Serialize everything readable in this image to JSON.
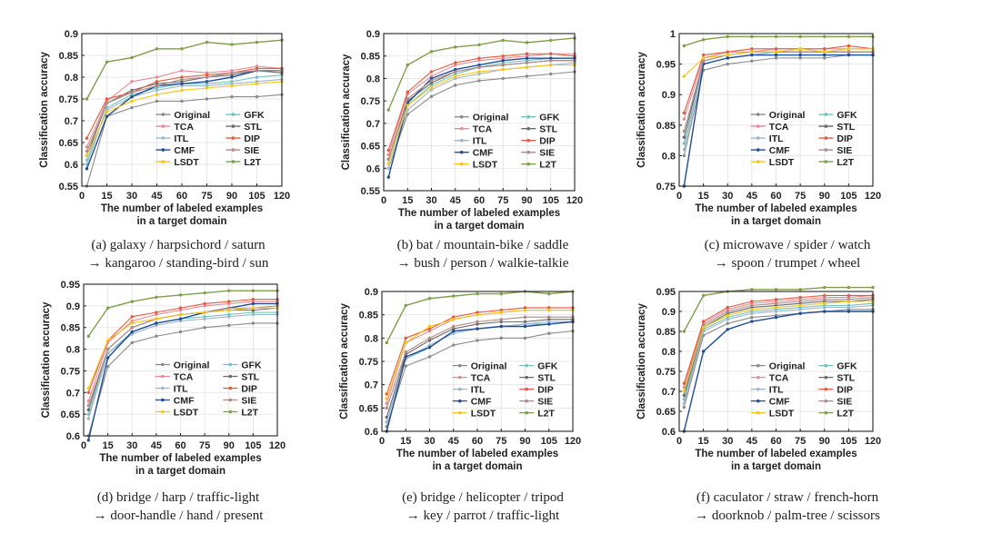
{
  "shared": {
    "xlabel_line1": "The number of labeled examples",
    "xlabel_line2": "in a target domain",
    "ylabel": "Classification accuracy",
    "x": [
      3,
      15,
      30,
      45,
      60,
      75,
      90,
      105,
      120
    ],
    "xticks": [
      "0",
      "15",
      "30",
      "45",
      "60",
      "75",
      "90",
      "105",
      "120"
    ],
    "legend": [
      "Original",
      "GFK",
      "TCA",
      "STL",
      "ITL",
      "DIP",
      "CMF",
      "SIE",
      "LSDT",
      "L2T"
    ],
    "method_colors": {
      "Original": "#8a8a8a",
      "GFK": "#6fc3bf",
      "TCA": "#e88a96",
      "STL": "#6a6a6a",
      "ITL": "#9fb6c8",
      "DIP": "#e35b3f",
      "CMF": "#1f4e96",
      "SIE": "#b08a86",
      "LSDT": "#f5c518",
      "L2T": "#7ea04a"
    }
  },
  "chart_data": [
    {
      "type": "line",
      "caption_line1": "(a) galaxy / harpsichord / saturn",
      "caption_line2": "→ kangaroo / standing-bird / sun",
      "ylim": [
        0.55,
        0.9
      ],
      "yticks": [
        "0.55",
        "0.6",
        "0.65",
        "0.7",
        "0.75",
        "0.8",
        "0.85",
        "0.9"
      ],
      "series": [
        {
          "name": "Original",
          "values": [
            0.55,
            0.71,
            0.73,
            0.745,
            0.745,
            0.75,
            0.755,
            0.755,
            0.76
          ]
        },
        {
          "name": "GFK",
          "values": [
            0.6,
            0.73,
            0.76,
            0.775,
            0.785,
            0.785,
            0.79,
            0.8,
            0.805
          ]
        },
        {
          "name": "TCA",
          "values": [
            0.64,
            0.745,
            0.79,
            0.8,
            0.815,
            0.81,
            0.815,
            0.825,
            0.82
          ]
        },
        {
          "name": "STL",
          "values": [
            0.62,
            0.74,
            0.77,
            0.785,
            0.79,
            0.8,
            0.805,
            0.815,
            0.81
          ]
        },
        {
          "name": "ITL",
          "values": [
            0.61,
            0.725,
            0.755,
            0.77,
            0.78,
            0.78,
            0.785,
            0.79,
            0.795
          ]
        },
        {
          "name": "DIP",
          "values": [
            0.66,
            0.75,
            0.765,
            0.79,
            0.8,
            0.805,
            0.81,
            0.82,
            0.82
          ]
        },
        {
          "name": "CMF",
          "values": [
            0.59,
            0.71,
            0.755,
            0.78,
            0.785,
            0.79,
            0.8,
            0.815,
            0.815
          ]
        },
        {
          "name": "SIE",
          "values": [
            0.63,
            0.74,
            0.765,
            0.78,
            0.795,
            0.8,
            0.81,
            0.815,
            0.815
          ]
        },
        {
          "name": "LSDT",
          "values": [
            0.62,
            0.72,
            0.745,
            0.76,
            0.77,
            0.775,
            0.78,
            0.785,
            0.79
          ]
        },
        {
          "name": "L2T",
          "values": [
            0.75,
            0.835,
            0.845,
            0.865,
            0.865,
            0.88,
            0.875,
            0.88,
            0.885
          ]
        }
      ]
    },
    {
      "type": "line",
      "caption_line1": "(b) bat / mountain-bike / saddle",
      "caption_line2": "→ bush / person / walkie-talkie",
      "ylim": [
        0.55,
        0.9
      ],
      "yticks": [
        "0.55",
        "0.6",
        "0.65",
        "0.7",
        "0.75",
        "0.8",
        "0.85",
        "0.9"
      ],
      "series": [
        {
          "name": "Original",
          "values": [
            0.6,
            0.72,
            0.76,
            0.785,
            0.795,
            0.8,
            0.805,
            0.81,
            0.815
          ]
        },
        {
          "name": "GFK",
          "values": [
            0.61,
            0.74,
            0.785,
            0.81,
            0.825,
            0.835,
            0.84,
            0.845,
            0.845
          ]
        },
        {
          "name": "TCA",
          "values": [
            0.63,
            0.765,
            0.805,
            0.83,
            0.84,
            0.845,
            0.85,
            0.855,
            0.855
          ]
        },
        {
          "name": "STL",
          "values": [
            0.62,
            0.75,
            0.79,
            0.815,
            0.825,
            0.83,
            0.835,
            0.84,
            0.84
          ]
        },
        {
          "name": "ITL",
          "values": [
            0.6,
            0.73,
            0.775,
            0.8,
            0.81,
            0.82,
            0.825,
            0.83,
            0.835
          ]
        },
        {
          "name": "DIP",
          "values": [
            0.64,
            0.77,
            0.815,
            0.835,
            0.845,
            0.85,
            0.855,
            0.855,
            0.85
          ]
        },
        {
          "name": "CMF",
          "values": [
            0.58,
            0.745,
            0.8,
            0.82,
            0.83,
            0.84,
            0.845,
            0.845,
            0.845
          ]
        },
        {
          "name": "SIE",
          "values": [
            0.62,
            0.755,
            0.795,
            0.815,
            0.825,
            0.83,
            0.835,
            0.84,
            0.84
          ]
        },
        {
          "name": "LSDT",
          "values": [
            0.61,
            0.74,
            0.78,
            0.805,
            0.815,
            0.82,
            0.825,
            0.83,
            0.83
          ]
        },
        {
          "name": "L2T",
          "values": [
            0.73,
            0.83,
            0.86,
            0.87,
            0.875,
            0.885,
            0.88,
            0.885,
            0.89
          ]
        }
      ]
    },
    {
      "type": "line",
      "caption_line1": "(c) microwave / spider / watch",
      "caption_line2": "→ spoon / trumpet / wheel",
      "ylim": [
        0.75,
        1.0
      ],
      "yticks": [
        "0.75",
        "0.8",
        "0.85",
        "0.9",
        "0.95",
        "1"
      ],
      "series": [
        {
          "name": "Original",
          "values": [
            0.8,
            0.94,
            0.95,
            0.955,
            0.96,
            0.96,
            0.96,
            0.965,
            0.965
          ]
        },
        {
          "name": "GFK",
          "values": [
            0.82,
            0.95,
            0.96,
            0.965,
            0.97,
            0.97,
            0.97,
            0.97,
            0.97
          ]
        },
        {
          "name": "TCA",
          "values": [
            0.86,
            0.96,
            0.97,
            0.97,
            0.975,
            0.975,
            0.975,
            0.975,
            0.975
          ]
        },
        {
          "name": "STL",
          "values": [
            0.83,
            0.955,
            0.965,
            0.97,
            0.97,
            0.97,
            0.97,
            0.97,
            0.97
          ]
        },
        {
          "name": "ITL",
          "values": [
            0.81,
            0.95,
            0.96,
            0.965,
            0.965,
            0.965,
            0.965,
            0.965,
            0.965
          ]
        },
        {
          "name": "DIP",
          "values": [
            0.87,
            0.965,
            0.97,
            0.975,
            0.975,
            0.975,
            0.975,
            0.98,
            0.975
          ]
        },
        {
          "name": "CMF",
          "values": [
            0.75,
            0.95,
            0.96,
            0.965,
            0.965,
            0.965,
            0.965,
            0.965,
            0.965
          ]
        },
        {
          "name": "SIE",
          "values": [
            0.84,
            0.955,
            0.965,
            0.97,
            0.97,
            0.97,
            0.97,
            0.97,
            0.97
          ]
        },
        {
          "name": "LSDT",
          "values": [
            0.93,
            0.96,
            0.965,
            0.97,
            0.97,
            0.975,
            0.97,
            0.975,
            0.975
          ]
        },
        {
          "name": "L2T",
          "values": [
            0.98,
            0.99,
            0.995,
            0.995,
            0.995,
            0.995,
            0.995,
            0.995,
            0.995
          ]
        }
      ]
    },
    {
      "type": "line",
      "caption_line1": "(d) bridge / harp / traffic-light",
      "caption_line2": "→ door-handle / hand / present",
      "ylim": [
        0.6,
        0.95
      ],
      "yticks": [
        "0.6",
        "0.65",
        "0.7",
        "0.75",
        "0.8",
        "0.85",
        "0.9",
        "0.95"
      ],
      "series": [
        {
          "name": "Original",
          "values": [
            0.6,
            0.76,
            0.815,
            0.83,
            0.84,
            0.85,
            0.855,
            0.86,
            0.86
          ]
        },
        {
          "name": "GFK",
          "values": [
            0.65,
            0.79,
            0.84,
            0.86,
            0.87,
            0.875,
            0.88,
            0.885,
            0.885
          ]
        },
        {
          "name": "TCA",
          "values": [
            0.68,
            0.815,
            0.865,
            0.88,
            0.89,
            0.9,
            0.905,
            0.91,
            0.91
          ]
        },
        {
          "name": "STL",
          "values": [
            0.66,
            0.8,
            0.85,
            0.87,
            0.88,
            0.885,
            0.89,
            0.89,
            0.895
          ]
        },
        {
          "name": "ITL",
          "values": [
            0.64,
            0.79,
            0.835,
            0.855,
            0.865,
            0.87,
            0.875,
            0.88,
            0.88
          ]
        },
        {
          "name": "DIP",
          "values": [
            0.7,
            0.82,
            0.875,
            0.885,
            0.895,
            0.905,
            0.91,
            0.915,
            0.915
          ]
        },
        {
          "name": "CMF",
          "values": [
            0.59,
            0.78,
            0.84,
            0.86,
            0.87,
            0.885,
            0.895,
            0.905,
            0.905
          ]
        },
        {
          "name": "SIE",
          "values": [
            0.67,
            0.8,
            0.85,
            0.87,
            0.88,
            0.885,
            0.895,
            0.895,
            0.9
          ]
        },
        {
          "name": "LSDT",
          "values": [
            0.71,
            0.82,
            0.86,
            0.87,
            0.88,
            0.885,
            0.89,
            0.895,
            0.895
          ]
        },
        {
          "name": "L2T",
          "values": [
            0.83,
            0.895,
            0.91,
            0.92,
            0.925,
            0.93,
            0.935,
            0.935,
            0.935
          ]
        }
      ]
    },
    {
      "type": "line",
      "caption_line1": "(e) bridge / helicopter / tripod",
      "caption_line2": "→ key / parrot / traffic-light",
      "ylim": [
        0.6,
        0.9
      ],
      "yticks": [
        "0.6",
        "0.65",
        "0.7",
        "0.75",
        "0.8",
        "0.85",
        "0.9"
      ],
      "series": [
        {
          "name": "Original",
          "values": [
            0.61,
            0.74,
            0.76,
            0.785,
            0.795,
            0.8,
            0.8,
            0.81,
            0.815
          ]
        },
        {
          "name": "GFK",
          "values": [
            0.62,
            0.755,
            0.78,
            0.815,
            0.82,
            0.825,
            0.83,
            0.83,
            0.835
          ]
        },
        {
          "name": "TCA",
          "values": [
            0.66,
            0.79,
            0.815,
            0.84,
            0.85,
            0.855,
            0.86,
            0.86,
            0.86
          ]
        },
        {
          "name": "STL",
          "values": [
            0.63,
            0.765,
            0.795,
            0.82,
            0.83,
            0.835,
            0.835,
            0.84,
            0.84
          ]
        },
        {
          "name": "ITL",
          "values": [
            0.62,
            0.755,
            0.785,
            0.81,
            0.82,
            0.825,
            0.83,
            0.835,
            0.835
          ]
        },
        {
          "name": "DIP",
          "values": [
            0.68,
            0.8,
            0.82,
            0.845,
            0.855,
            0.86,
            0.865,
            0.865,
            0.865
          ]
        },
        {
          "name": "CMF",
          "values": [
            0.6,
            0.76,
            0.78,
            0.815,
            0.82,
            0.825,
            0.825,
            0.83,
            0.835
          ]
        },
        {
          "name": "SIE",
          "values": [
            0.65,
            0.77,
            0.8,
            0.825,
            0.835,
            0.84,
            0.845,
            0.845,
            0.845
          ]
        },
        {
          "name": "LSDT",
          "values": [
            0.67,
            0.79,
            0.825,
            0.84,
            0.85,
            0.855,
            0.86,
            0.86,
            0.86
          ]
        },
        {
          "name": "L2T",
          "values": [
            0.79,
            0.87,
            0.885,
            0.89,
            0.895,
            0.895,
            0.9,
            0.895,
            0.9
          ]
        }
      ]
    },
    {
      "type": "line",
      "caption_line1": "(f) caculator / straw / french-horn",
      "caption_line2": "→ doorknob / palm-tree / scissors",
      "ylim": [
        0.6,
        0.95
      ],
      "yticks": [
        "0.6",
        "0.65",
        "0.7",
        "0.75",
        "0.8",
        "0.85",
        "0.9",
        "0.95"
      ],
      "series": [
        {
          "name": "Original",
          "values": [
            0.66,
            0.84,
            0.87,
            0.885,
            0.89,
            0.895,
            0.9,
            0.905,
            0.905
          ]
        },
        {
          "name": "GFK",
          "values": [
            0.68,
            0.855,
            0.885,
            0.9,
            0.905,
            0.91,
            0.915,
            0.915,
            0.92
          ]
        },
        {
          "name": "TCA",
          "values": [
            0.71,
            0.87,
            0.905,
            0.92,
            0.925,
            0.93,
            0.935,
            0.935,
            0.94
          ]
        },
        {
          "name": "STL",
          "values": [
            0.69,
            0.86,
            0.895,
            0.91,
            0.915,
            0.92,
            0.925,
            0.925,
            0.93
          ]
        },
        {
          "name": "ITL",
          "values": [
            0.67,
            0.85,
            0.88,
            0.895,
            0.9,
            0.905,
            0.91,
            0.91,
            0.915
          ]
        },
        {
          "name": "DIP",
          "values": [
            0.72,
            0.875,
            0.91,
            0.925,
            0.93,
            0.935,
            0.94,
            0.94,
            0.94
          ]
        },
        {
          "name": "CMF",
          "values": [
            0.6,
            0.8,
            0.855,
            0.875,
            0.885,
            0.895,
            0.9,
            0.9,
            0.9
          ]
        },
        {
          "name": "SIE",
          "values": [
            0.7,
            0.865,
            0.9,
            0.915,
            0.92,
            0.925,
            0.93,
            0.93,
            0.935
          ]
        },
        {
          "name": "LSDT",
          "values": [
            0.7,
            0.86,
            0.89,
            0.905,
            0.91,
            0.915,
            0.92,
            0.925,
            0.925
          ]
        },
        {
          "name": "L2T",
          "values": [
            0.85,
            0.94,
            0.95,
            0.955,
            0.955,
            0.955,
            0.96,
            0.96,
            0.96
          ]
        }
      ]
    }
  ]
}
